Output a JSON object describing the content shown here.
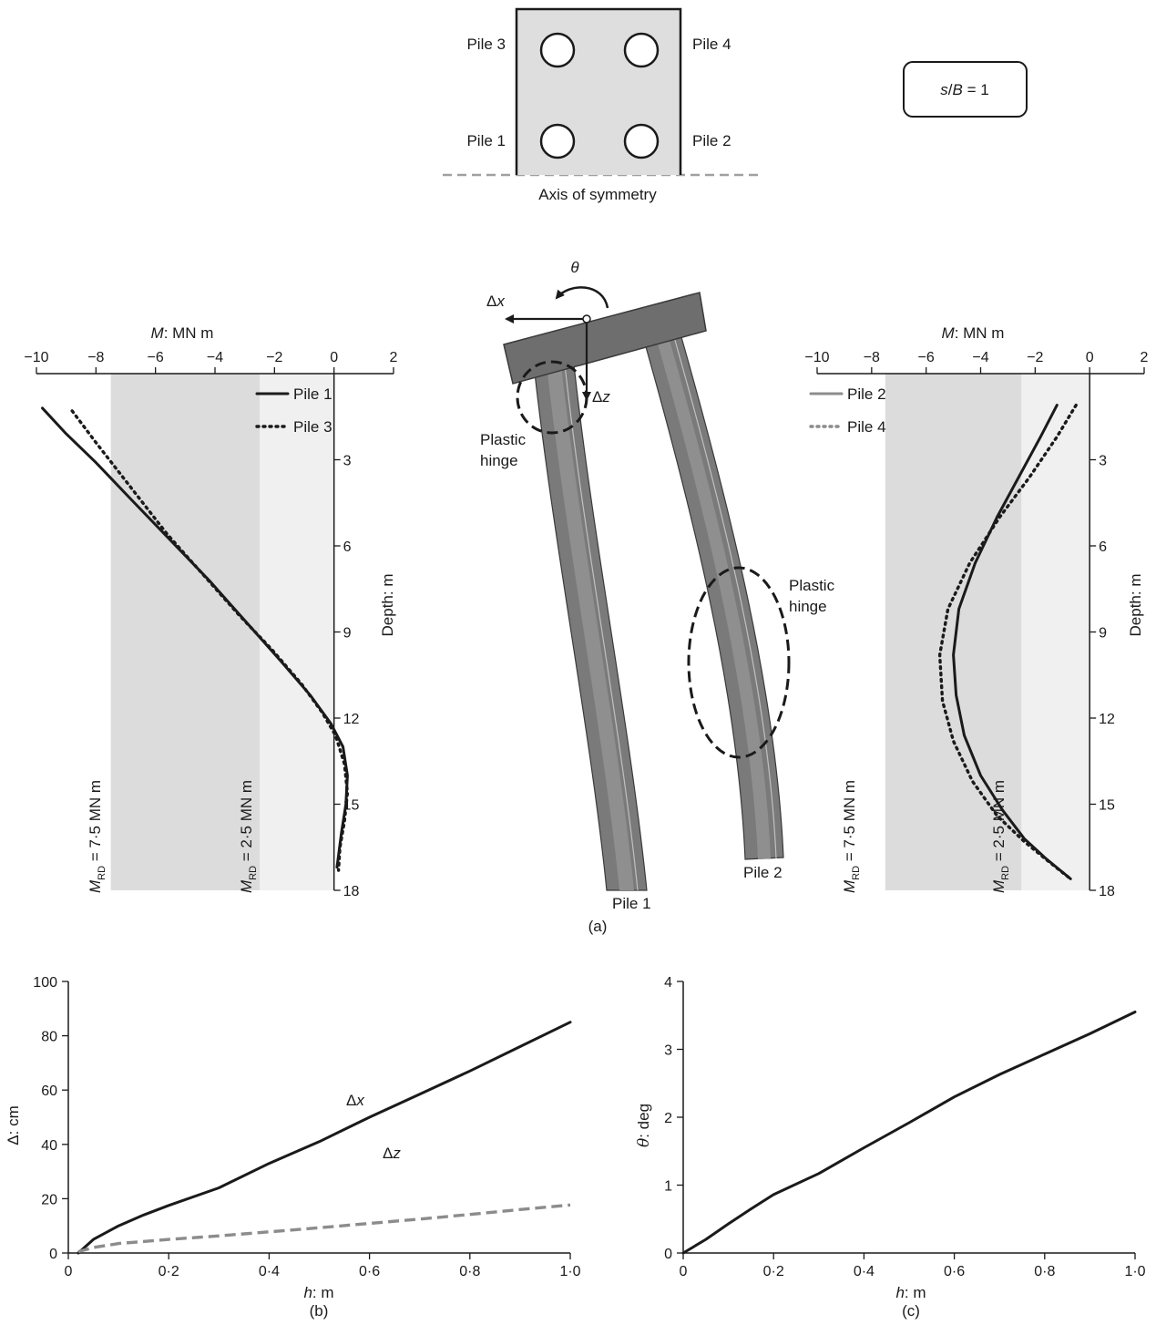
{
  "layout_diagram": {
    "piles": [
      "Pile 3",
      "Pile 4",
      "Pile 1",
      "Pile 2"
    ],
    "symmetry_label": "Axis of symmetry",
    "ratio_label": "s/B = 1",
    "ratio_label_parts": [
      "s",
      "/",
      "B",
      " = 1"
    ]
  },
  "deformed_diagram": {
    "rotation_symbol": "θ",
    "dx_symbol": "Δ",
    "dx_var": "x",
    "dz_symbol": "Δ",
    "dz_var": "z",
    "hinge_label_line1": "Plastic",
    "hinge_label_line2": "hinge",
    "pile1_label": "Pile 1",
    "pile2_label": "Pile 2",
    "caption": "(a)"
  },
  "mrd_labels": {
    "m_symbol": "M",
    "subscript": "RD",
    "value_high": " = 7·5 MN m",
    "value_low": " = 2·5 MN m"
  },
  "chart_data": [
    {
      "type": "line",
      "x_axis": {
        "label_var": "M",
        "label_unit": ": MN m",
        "range": [
          -10,
          2
        ],
        "ticks": [
          "−10",
          "−8",
          "−6",
          "−4",
          "−2",
          "0",
          "2"
        ],
        "position": "top"
      },
      "y_axis": {
        "label": "Depth: m",
        "range": [
          0,
          18
        ],
        "inverted": true,
        "ticks": [
          "3",
          "6",
          "9",
          "12",
          "15",
          "18"
        ]
      },
      "bands": [
        {
          "from": -7.5,
          "to": -2.5,
          "color": "#dcdcdc"
        },
        {
          "from": -2.5,
          "to": 0,
          "color": "#f0f0f0"
        }
      ],
      "series": [
        {
          "name": "Pile 1",
          "style": "solid",
          "color": "#1a1a1a",
          "points": [
            [
              -9.8,
              1.2
            ],
            [
              -9.0,
              2.1
            ],
            [
              -8.0,
              3.1
            ],
            [
              -6.8,
              4.4
            ],
            [
              -5.5,
              5.8
            ],
            [
              -4.2,
              7.2
            ],
            [
              -3.0,
              8.6
            ],
            [
              -1.8,
              10.0
            ],
            [
              -0.8,
              11.2
            ],
            [
              -0.1,
              12.2
            ],
            [
              0.3,
              13.0
            ],
            [
              0.45,
              14.0
            ],
            [
              0.4,
              15.0
            ],
            [
              0.25,
              16.0
            ],
            [
              0.1,
              17.2
            ]
          ]
        },
        {
          "name": "Pile 3",
          "style": "dotted",
          "color": "#1a1a1a",
          "points": [
            [
              -8.8,
              1.3
            ],
            [
              -8.0,
              2.4
            ],
            [
              -6.8,
              4.0
            ],
            [
              -5.6,
              5.6
            ],
            [
              -4.4,
              7.0
            ],
            [
              -3.2,
              8.4
            ],
            [
              -2.1,
              9.6
            ],
            [
              -1.1,
              10.8
            ],
            [
              -0.4,
              11.8
            ],
            [
              0.05,
              12.6
            ],
            [
              0.35,
              13.6
            ],
            [
              0.45,
              14.6
            ],
            [
              0.35,
              15.6
            ],
            [
              0.2,
              16.5
            ],
            [
              0.15,
              17.3
            ]
          ]
        }
      ]
    },
    {
      "type": "line",
      "x_axis": {
        "label_var": "M",
        "label_unit": ": MN m",
        "range": [
          -10,
          2
        ],
        "ticks": [
          "−10",
          "−8",
          "−6",
          "−4",
          "−2",
          "0",
          "2"
        ],
        "position": "top"
      },
      "y_axis": {
        "label": "Depth: m",
        "range": [
          0,
          18
        ],
        "inverted": true,
        "ticks": [
          "3",
          "6",
          "9",
          "12",
          "15",
          "18"
        ]
      },
      "bands": [
        {
          "from": -7.5,
          "to": -2.5,
          "color": "#dcdcdc"
        },
        {
          "from": -2.5,
          "to": 0,
          "color": "#f0f0f0"
        }
      ],
      "series": [
        {
          "name": "Pile 2",
          "style": "solid",
          "color": "#1a1a1a",
          "legend_color": "#8c8c8c",
          "points": [
            [
              -1.2,
              1.1
            ],
            [
              -1.8,
              2.2
            ],
            [
              -2.6,
              3.6
            ],
            [
              -3.4,
              5.0
            ],
            [
              -4.2,
              6.6
            ],
            [
              -4.8,
              8.2
            ],
            [
              -5.0,
              9.8
            ],
            [
              -4.9,
              11.2
            ],
            [
              -4.6,
              12.6
            ],
            [
              -4.0,
              14.0
            ],
            [
              -3.2,
              15.2
            ],
            [
              -2.4,
              16.2
            ],
            [
              -1.6,
              16.9
            ],
            [
              -0.7,
              17.6
            ]
          ]
        },
        {
          "name": "Pile 4",
          "style": "dotted",
          "color": "#1a1a1a",
          "legend_color": "#8c8c8c",
          "points": [
            [
              -0.5,
              1.1
            ],
            [
              -1.2,
              2.2
            ],
            [
              -2.2,
              3.6
            ],
            [
              -3.3,
              5.0
            ],
            [
              -4.4,
              6.6
            ],
            [
              -5.2,
              8.2
            ],
            [
              -5.5,
              9.8
            ],
            [
              -5.4,
              11.4
            ],
            [
              -5.0,
              12.8
            ],
            [
              -4.3,
              14.2
            ],
            [
              -3.4,
              15.4
            ],
            [
              -2.4,
              16.3
            ],
            [
              -1.5,
              17.0
            ],
            [
              -0.7,
              17.6
            ]
          ]
        }
      ]
    },
    {
      "type": "line",
      "caption": "(b)",
      "x_axis": {
        "label_var": "h",
        "label_unit": ": m",
        "range": [
          0,
          1.0
        ],
        "ticks": [
          "0",
          "0·2",
          "0·4",
          "0·6",
          "0·8",
          "1·0"
        ]
      },
      "y_axis": {
        "label_var": "Δ",
        "label_unit": ": cm",
        "range": [
          0,
          100
        ],
        "ticks": [
          "0",
          "20",
          "40",
          "60",
          "80",
          "100"
        ]
      },
      "series": [
        {
          "name": "Δx",
          "symbol": "Δ",
          "var": "x",
          "style": "solid",
          "color": "#1a1a1a",
          "points": [
            [
              0.02,
              0
            ],
            [
              0.05,
              5
            ],
            [
              0.1,
              10
            ],
            [
              0.15,
              14
            ],
            [
              0.2,
              17.5
            ],
            [
              0.3,
              24
            ],
            [
              0.4,
              33
            ],
            [
              0.5,
              41
            ],
            [
              0.6,
              50
            ],
            [
              0.7,
              58.5
            ],
            [
              0.8,
              67
            ],
            [
              0.9,
              76
            ],
            [
              1.0,
              85
            ]
          ]
        },
        {
          "name": "Δz",
          "symbol": "Δ",
          "var": "z",
          "style": "dashed",
          "color": "#8c8c8c",
          "points": [
            [
              0.02,
              0.5
            ],
            [
              0.05,
              2
            ],
            [
              0.1,
              3.5
            ],
            [
              0.2,
              5
            ],
            [
              0.3,
              6.3
            ],
            [
              0.4,
              7.8
            ],
            [
              0.5,
              9.3
            ],
            [
              0.6,
              10.9
            ],
            [
              0.7,
              12.5
            ],
            [
              0.8,
              14.2
            ],
            [
              0.9,
              16
            ],
            [
              1.0,
              17.7
            ]
          ]
        }
      ]
    },
    {
      "type": "line",
      "caption": "(c)",
      "x_axis": {
        "label_var": "h",
        "label_unit": ": m",
        "range": [
          0,
          1.0
        ],
        "ticks": [
          "0",
          "0·2",
          "0·4",
          "0·6",
          "0·8",
          "1·0"
        ]
      },
      "y_axis": {
        "label_var": "θ",
        "label_unit": ": deg",
        "range": [
          0,
          4
        ],
        "ticks": [
          "0",
          "1",
          "2",
          "3",
          "4"
        ]
      },
      "series": [
        {
          "name": "θ",
          "style": "solid",
          "color": "#1a1a1a",
          "points": [
            [
              0,
              0
            ],
            [
              0.05,
              0.2
            ],
            [
              0.1,
              0.43
            ],
            [
              0.15,
              0.65
            ],
            [
              0.2,
              0.86
            ],
            [
              0.3,
              1.17
            ],
            [
              0.4,
              1.55
            ],
            [
              0.5,
              1.92
            ],
            [
              0.6,
              2.3
            ],
            [
              0.7,
              2.63
            ],
            [
              0.8,
              2.93
            ],
            [
              0.9,
              3.23
            ],
            [
              1.0,
              3.55
            ]
          ]
        }
      ]
    }
  ]
}
